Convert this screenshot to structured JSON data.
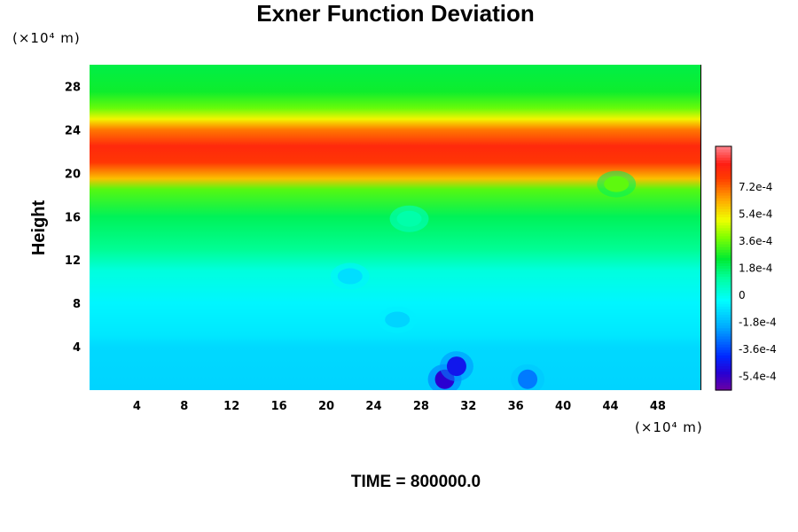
{
  "chart_data": {
    "type": "heatmap",
    "title": "Exner Function Deviation",
    "ylabel": "Height",
    "x_unit": "(×10⁴ m)",
    "y_unit": "(×10⁴ m)",
    "xlim": [
      0,
      51.6
    ],
    "ylim": [
      0,
      30
    ],
    "x_ticks": [
      4,
      8,
      12,
      16,
      20,
      24,
      28,
      32,
      36,
      40,
      44,
      48
    ],
    "y_ticks": [
      4,
      8,
      12,
      16,
      20,
      24,
      28
    ],
    "colorbar": {
      "range": [
        -0.00063,
        0.00099
      ],
      "ticks": [
        "7.2e-4",
        "5.4e-4",
        "3.6e-4",
        "1.8e-4",
        "0",
        "-1.8e-4",
        "-3.6e-4",
        "-5.4e-4"
      ],
      "tick_values": [
        0.00072,
        0.00054,
        0.00036,
        0.00018,
        0,
        -0.00018,
        -0.00036,
        -0.00054
      ]
    },
    "vertical_profile": [
      {
        "height": 0,
        "value": -0.00012
      },
      {
        "height": 4,
        "value": -0.00011
      },
      {
        "height": 5,
        "value": -8e-05
      },
      {
        "height": 8,
        "value": -5e-05
      },
      {
        "height": 11,
        "value": 2e-05
      },
      {
        "height": 13,
        "value": 0.00013
      },
      {
        "height": 16,
        "value": 0.0002
      },
      {
        "height": 18.5,
        "value": 0.00034
      },
      {
        "height": 19.5,
        "value": 0.0006
      },
      {
        "height": 21,
        "value": 0.0008
      },
      {
        "height": 22.5,
        "value": 0.00084
      },
      {
        "height": 24,
        "value": 0.0007
      },
      {
        "height": 25,
        "value": 0.00052
      },
      {
        "height": 26,
        "value": 0.00036
      },
      {
        "height": 27.5,
        "value": 0.00026
      },
      {
        "height": 30,
        "value": 0.00022
      }
    ],
    "features": [
      {
        "x": 30,
        "y": 1.0,
        "value": -0.00052
      },
      {
        "x": 31,
        "y": 2.2,
        "value": -0.00045
      },
      {
        "x": 37,
        "y": 1.0,
        "value": -0.00028
      },
      {
        "x": 26,
        "y": 6.5,
        "value": -0.00012
      },
      {
        "x": 27,
        "y": 15.8,
        "value": 0.0001
      },
      {
        "x": 44.5,
        "y": 19.0,
        "value": 0.00035
      },
      {
        "x": 22,
        "y": 10.5,
        "value": -0.0001
      }
    ]
  },
  "footer": "TIME = 800000.0"
}
